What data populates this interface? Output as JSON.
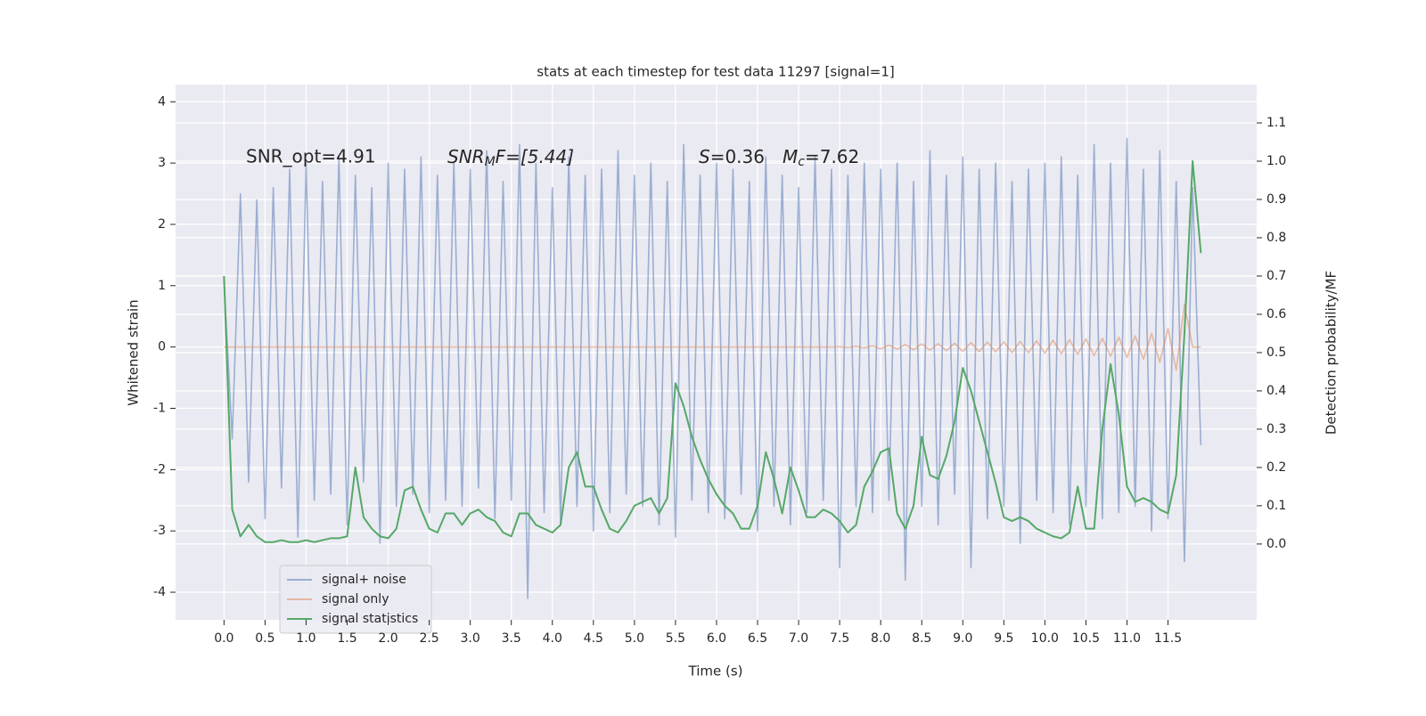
{
  "chart_data": {
    "type": "line",
    "title": "stats at each timestep for test data 11297 [signal=1]",
    "xlabel": "Time (s)",
    "ylabel": "Whitened strain",
    "y2label": "Detection probability/MF",
    "annotations": [
      [
        "SNR_opt=4.91"
      ],
      [
        "SNR",
        "M",
        "F=[5.44]"
      ],
      [
        "S",
        "=0.36"
      ],
      [
        "M",
        "c",
        "=7.62"
      ]
    ],
    "grid": true,
    "legend": "lower left",
    "xlim": [
      -0.59,
      12.58
    ],
    "ylim": [
      -4.45,
      4.28
    ],
    "y2lim": [
      -0.198,
      1.2
    ],
    "xticks": [
      {
        "value": 0,
        "label": "0.0"
      },
      {
        "value": 0.5,
        "label": "0.5"
      },
      {
        "value": 1,
        "label": "1.0"
      },
      {
        "value": 1.5,
        "label": "1.5"
      },
      {
        "value": 2,
        "label": "2.0"
      },
      {
        "value": 2.5,
        "label": "2.5"
      },
      {
        "value": 3,
        "label": "3.0"
      },
      {
        "value": 3.5,
        "label": "3.5"
      },
      {
        "value": 4,
        "label": "4.0"
      },
      {
        "value": 4.5,
        "label": "4.5"
      },
      {
        "value": 5,
        "label": "5.0"
      },
      {
        "value": 5.5,
        "label": "5.5"
      },
      {
        "value": 6,
        "label": "6.0"
      },
      {
        "value": 6.5,
        "label": "6.5"
      },
      {
        "value": 7,
        "label": "7.0"
      },
      {
        "value": 7.5,
        "label": "7.5"
      },
      {
        "value": 8,
        "label": "8.0"
      },
      {
        "value": 8.5,
        "label": "8.5"
      },
      {
        "value": 9,
        "label": "9.0"
      },
      {
        "value": 9.5,
        "label": "9.5"
      },
      {
        "value": 10,
        "label": "10.0"
      },
      {
        "value": 10.5,
        "label": "10.5"
      },
      {
        "value": 11,
        "label": "11.0"
      },
      {
        "value": 11.5,
        "label": "11.5"
      }
    ],
    "yticks": [
      -4,
      -3,
      -2,
      -1,
      0,
      1,
      2,
      3,
      4
    ],
    "y2ticks": [
      {
        "value": 0,
        "label": "0.0"
      },
      {
        "value": 0.1,
        "label": "0.1"
      },
      {
        "value": 0.2,
        "label": "0.2"
      },
      {
        "value": 0.3,
        "label": "0.3"
      },
      {
        "value": 0.4,
        "label": "0.4"
      },
      {
        "value": 0.5,
        "label": "0.5"
      },
      {
        "value": 0.6,
        "label": "0.6"
      },
      {
        "value": 0.7,
        "label": "0.7"
      },
      {
        "value": 0.8,
        "label": "0.8"
      },
      {
        "value": 0.9,
        "label": "0.9"
      },
      {
        "value": 1,
        "label": "1.0"
      },
      {
        "value": 1.1,
        "label": "1.1"
      }
    ],
    "x": [
      0,
      0.1,
      0.2,
      0.3,
      0.4,
      0.5,
      0.6,
      0.7,
      0.8,
      0.9,
      1,
      1.1,
      1.2,
      1.3,
      1.4,
      1.5,
      1.6,
      1.7,
      1.8,
      1.9,
      2,
      2.1,
      2.2,
      2.3,
      2.4,
      2.5,
      2.6,
      2.7,
      2.8,
      2.9,
      3,
      3.1,
      3.2,
      3.3,
      3.4,
      3.5,
      3.6,
      3.7,
      3.8,
      3.9,
      4,
      4.1,
      4.2,
      4.3,
      4.4,
      4.5,
      4.6,
      4.7,
      4.8,
      4.9,
      5,
      5.1,
      5.2,
      5.3,
      5.4,
      5.5,
      5.6,
      5.7,
      5.8,
      5.9,
      6,
      6.1,
      6.2,
      6.3,
      6.4,
      6.5,
      6.6,
      6.7,
      6.8,
      6.9,
      7,
      7.1,
      7.2,
      7.3,
      7.4,
      7.5,
      7.6,
      7.7,
      7.8,
      7.9,
      8,
      8.1,
      8.2,
      8.3,
      8.4,
      8.5,
      8.6,
      8.7,
      8.8,
      8.9,
      9,
      9.1,
      9.2,
      9.3,
      9.4,
      9.5,
      9.6,
      9.7,
      9.8,
      9.9,
      10,
      10.1,
      10.2,
      10.3,
      10.4,
      10.5,
      10.6,
      10.7,
      10.8,
      10.9,
      11,
      11.1,
      11.2,
      11.3,
      11.4,
      11.5,
      11.6,
      11.7,
      11.8,
      11.9
    ],
    "series": [
      {
        "name": "signal+ noise",
        "color": "#4c72b0",
        "axis": "y",
        "values": [
          1.1,
          -1.5,
          2.5,
          -2.2,
          2.4,
          -2.8,
          2.6,
          -2.3,
          2.9,
          -3.1,
          3.0,
          -2.5,
          2.7,
          -2.4,
          3.1,
          -2.9,
          2.8,
          -2.2,
          2.6,
          -3.2,
          3.0,
          -2.6,
          2.9,
          -2.4,
          3.1,
          -2.7,
          2.8,
          -2.5,
          3.0,
          -2.6,
          2.9,
          -2.3,
          3.2,
          -2.8,
          2.7,
          -2.5,
          3.3,
          -4.1,
          3.0,
          -2.7,
          2.6,
          -2.9,
          3.1,
          -2.6,
          2.8,
          -3.0,
          2.9,
          -2.7,
          3.2,
          -2.4,
          2.8,
          -2.6,
          3.0,
          -2.9,
          2.7,
          -3.1,
          3.3,
          -2.5,
          2.8,
          -2.7,
          3.0,
          -2.8,
          2.9,
          -2.4,
          2.7,
          -3.0,
          3.1,
          -2.6,
          2.8,
          -2.9,
          2.6,
          -2.7,
          3.1,
          -2.5,
          2.9,
          -3.6,
          2.8,
          -2.6,
          3.0,
          -2.7,
          2.9,
          -2.5,
          3.0,
          -3.8,
          2.7,
          -2.6,
          3.2,
          -2.9,
          2.8,
          -2.4,
          3.1,
          -3.6,
          2.9,
          -2.8,
          3.0,
          -2.6,
          2.7,
          -3.2,
          2.9,
          -2.5,
          3.0,
          -2.7,
          3.1,
          -2.9,
          2.8,
          -2.6,
          3.3,
          -2.8,
          3.0,
          -2.7,
          3.4,
          -2.6,
          2.9,
          -3.0,
          3.2,
          -2.8,
          2.7,
          -3.5,
          2.6,
          -1.6
        ]
      },
      {
        "name": "signal only",
        "color": "#dd8452",
        "axis": "y",
        "values": [
          0,
          0,
          0,
          0,
          0,
          0,
          0,
          0,
          0,
          0,
          0,
          0,
          0,
          0,
          0,
          0,
          0,
          0,
          0,
          0,
          0,
          0,
          0,
          0,
          0,
          0,
          0,
          0,
          0,
          0,
          0,
          0,
          0,
          0,
          0,
          0,
          0,
          0,
          0,
          0,
          0,
          0,
          0,
          0,
          0,
          0,
          0,
          0,
          0,
          0,
          0,
          0,
          0,
          0,
          0,
          0,
          0,
          0,
          0,
          0,
          0,
          0,
          0,
          0,
          0,
          0,
          0,
          0,
          0,
          0,
          0,
          0,
          0,
          0,
          0,
          0.005,
          -0.01,
          0.01,
          -0.015,
          0.02,
          -0.03,
          0.03,
          -0.035,
          0.04,
          -0.045,
          0.05,
          -0.05,
          0.055,
          -0.06,
          0.06,
          -0.07,
          0.07,
          -0.075,
          0.08,
          -0.08,
          0.085,
          -0.09,
          0.09,
          -0.095,
          0.1,
          -0.1,
          0.11,
          -0.11,
          0.12,
          -0.12,
          0.13,
          -0.14,
          0.14,
          -0.15,
          0.16,
          -0.17,
          0.18,
          -0.2,
          0.22,
          -0.25,
          0.3,
          -0.38,
          0.7,
          0,
          0
        ]
      },
      {
        "name": "signal statistics",
        "color": "#55a868",
        "axis": "y2",
        "values": [
          0.7,
          0.09,
          0.02,
          0.05,
          0.02,
          0.005,
          0.005,
          0.01,
          0.005,
          0.005,
          0.01,
          0.005,
          0.01,
          0.015,
          0.015,
          0.02,
          0.2,
          0.07,
          0.04,
          0.02,
          0.015,
          0.04,
          0.14,
          0.15,
          0.09,
          0.04,
          0.03,
          0.08,
          0.08,
          0.05,
          0.08,
          0.09,
          0.07,
          0.06,
          0.03,
          0.02,
          0.08,
          0.08,
          0.05,
          0.04,
          0.03,
          0.05,
          0.2,
          0.24,
          0.15,
          0.15,
          0.09,
          0.04,
          0.03,
          0.06,
          0.1,
          0.11,
          0.12,
          0.08,
          0.12,
          0.42,
          0.36,
          0.28,
          0.22,
          0.17,
          0.13,
          0.1,
          0.08,
          0.04,
          0.04,
          0.1,
          0.24,
          0.17,
          0.08,
          0.2,
          0.14,
          0.07,
          0.07,
          0.09,
          0.08,
          0.06,
          0.03,
          0.05,
          0.15,
          0.19,
          0.24,
          0.25,
          0.08,
          0.04,
          0.1,
          0.28,
          0.18,
          0.17,
          0.23,
          0.32,
          0.46,
          0.4,
          0.32,
          0.24,
          0.16,
          0.07,
          0.06,
          0.07,
          0.06,
          0.04,
          0.03,
          0.02,
          0.015,
          0.03,
          0.15,
          0.04,
          0.04,
          0.3,
          0.47,
          0.34,
          0.15,
          0.11,
          0.12,
          0.11,
          0.09,
          0.08,
          0.18,
          0.55,
          1.0,
          0.76
        ]
      }
    ]
  }
}
